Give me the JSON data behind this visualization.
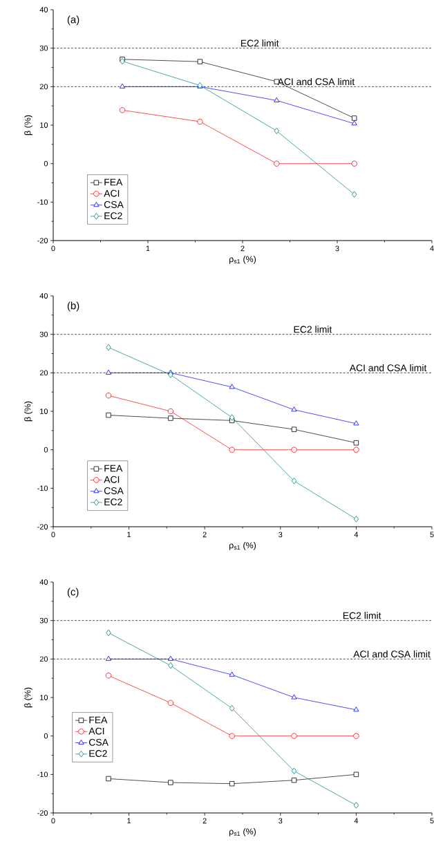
{
  "chart_data": [
    {
      "type": "line",
      "title": "(a)",
      "xlabel": "ρ$_{s1}$ (%)",
      "ylabel": "β (%)",
      "x": [
        0.73,
        1.55,
        2.36,
        3.18
      ],
      "series": [
        {
          "name": "FEA",
          "color": "#000000",
          "marker": "square",
          "values": [
            27.1,
            26.5,
            21.3,
            11.8
          ]
        },
        {
          "name": "ACI",
          "color": "#ff0000",
          "marker": "circle",
          "values": [
            13.9,
            10.9,
            0,
            0
          ]
        },
        {
          "name": "CSA",
          "color": "#0000ff",
          "marker": "triangle",
          "values": [
            20,
            20,
            16.4,
            10.4
          ]
        },
        {
          "name": "EC2",
          "color": "#008080",
          "marker": "diamond",
          "values": [
            26.6,
            20.3,
            8.5,
            -8.0
          ]
        }
      ],
      "xlim": [
        0,
        4
      ],
      "xticks": [
        0,
        1,
        2,
        3,
        4
      ],
      "ylim": [
        -20,
        40
      ],
      "yticks": [
        -20,
        -10,
        0,
        10,
        20,
        30,
        40
      ],
      "ref_lines": [
        {
          "axis": "y",
          "value": 30,
          "label": "EC2 limit",
          "line_style": "dashed",
          "color": "#000000"
        },
        {
          "axis": "y",
          "value": 20,
          "label": "ACI and CSA limit",
          "line_style": "dashed",
          "color": "#000000"
        }
      ],
      "legend": "bottom left"
    },
    {
      "type": "line",
      "title": "(b)",
      "xlabel": "ρ$_{s1}$ (%)",
      "ylabel": "β (%)",
      "x": [
        0.73,
        1.55,
        2.36,
        3.18,
        4.0
      ],
      "series": [
        {
          "name": "FEA",
          "color": "#000000",
          "marker": "square",
          "values": [
            9.0,
            8.2,
            7.6,
            5.3,
            1.8
          ]
        },
        {
          "name": "ACI",
          "color": "#ff0000",
          "marker": "circle",
          "values": [
            14.1,
            10,
            0,
            0,
            0
          ]
        },
        {
          "name": "CSA",
          "color": "#0000ff",
          "marker": "triangle",
          "values": [
            20,
            20,
            16.3,
            10.4,
            6.8
          ]
        },
        {
          "name": "EC2",
          "color": "#008080",
          "marker": "diamond",
          "values": [
            26.6,
            19.5,
            8.4,
            -8.1,
            -18
          ]
        }
      ],
      "xlim": [
        0,
        5
      ],
      "xticks": [
        0,
        1,
        2,
        3,
        4,
        5
      ],
      "ylim": [
        -20,
        40
      ],
      "yticks": [
        -20,
        -10,
        0,
        10,
        20,
        30,
        40
      ],
      "ref_lines": [
        {
          "axis": "y",
          "value": 30,
          "label": "EC2 limit",
          "line_style": "dashed",
          "color": "#000000"
        },
        {
          "axis": "y",
          "value": 20,
          "label": "ACI and CSA limit",
          "line_style": "dashed",
          "color": "#000000"
        }
      ],
      "legend": "bottom left"
    },
    {
      "type": "line",
      "title": "(c)",
      "xlabel": "ρ$_{s1}$ (%)",
      "ylabel": "β (%)",
      "x": [
        0.73,
        1.55,
        2.36,
        3.18,
        4.0
      ],
      "series": [
        {
          "name": "FEA",
          "color": "#000000",
          "marker": "square",
          "values": [
            -11.1,
            -12.1,
            -12.4,
            -11.5,
            -10
          ]
        },
        {
          "name": "ACI",
          "color": "#ff0000",
          "marker": "circle",
          "values": [
            15.7,
            8.6,
            0,
            0,
            0
          ]
        },
        {
          "name": "CSA",
          "color": "#0000ff",
          "marker": "triangle",
          "values": [
            20,
            20,
            15.9,
            10,
            6.8
          ]
        },
        {
          "name": "EC2",
          "color": "#008080",
          "marker": "diamond",
          "values": [
            26.8,
            18.3,
            7.2,
            -9.1,
            -18
          ]
        }
      ],
      "xlim": [
        0,
        5
      ],
      "xticks": [
        0,
        1,
        2,
        3,
        4,
        5
      ],
      "ylim": [
        -20,
        40
      ],
      "yticks": [
        -20,
        -10,
        0,
        10,
        20,
        30,
        40
      ],
      "ref_lines": [
        {
          "axis": "y",
          "value": 30,
          "label": "EC2 limit",
          "line_style": "dashed",
          "color": "#000000"
        },
        {
          "axis": "y",
          "value": 20,
          "label": "ACI and CSA limit",
          "line_style": "dashed",
          "color": "#000000"
        }
      ],
      "legend": "left"
    }
  ]
}
